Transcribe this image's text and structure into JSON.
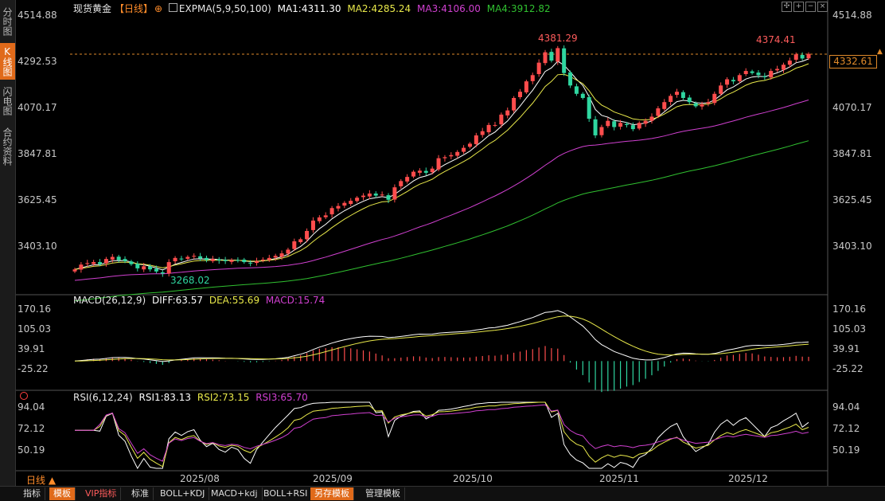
{
  "left_tabs": [
    "分时图",
    "K线图",
    "闪电图",
    "合约资料"
  ],
  "active_tab_index": 1,
  "header": {
    "symbol": "现货黄金",
    "period": "【日线】",
    "indicator": "EXPMA(5,9,50,100)",
    "ma1": "MA1:4311.30",
    "ma2": "MA2:4285.24",
    "ma3": "MA3:4106.00",
    "ma4": "MA4:3912.82",
    "toolbar_icons": [
      "move-icon",
      "zoom-in-icon",
      "zoom-out-icon",
      "close-icon"
    ]
  },
  "price_axis": [
    "4514.88",
    "4292.53",
    "4070.17",
    "3847.81",
    "3625.45",
    "3403.10"
  ],
  "current_price": "4332.61",
  "annotations": {
    "high": "4381.29",
    "recent_high": "4374.41",
    "low": "3268.02"
  },
  "macd": {
    "title": "MACD(26,12,9)",
    "diff": "DIFF:63.57",
    "dea": "DEA:55.69",
    "macd": "MACD:15.74",
    "axis": [
      "170.16",
      "105.03",
      "39.91",
      "-25.22"
    ]
  },
  "rsi": {
    "title": "RSI(6,12,24)",
    "rsi1": "RSI1:83.13",
    "rsi2": "RSI2:73.15",
    "rsi3": "RSI3:65.70",
    "axis": [
      "94.04",
      "72.12",
      "50.19"
    ]
  },
  "period_selector": "日线 ▲",
  "dates": [
    "2025/08",
    "2025/09",
    "2025/10",
    "2025/11",
    "2025/12"
  ],
  "bottom_tabs": [
    "指标",
    "模板",
    "VIP指标",
    "标准",
    "BOLL+KDJ",
    "MACD+kdj",
    "BOLL+RSI",
    "另存模板",
    "管理模板"
  ],
  "colors": {
    "up": "#ff4d4d",
    "down": "#2fd6a0",
    "ma1": "#ffffff",
    "ma2": "#e8e84a",
    "ma3": "#d040d0",
    "ma4": "#30c030",
    "accent": "#e06a1a"
  },
  "chart_data": {
    "type": "candlestick",
    "title": "现货黄金【日线】",
    "close_series": [
      3295,
      3318,
      3325,
      3330,
      3320,
      3345,
      3355,
      3340,
      3335,
      3320,
      3300,
      3310,
      3295,
      3285,
      3275,
      3330,
      3350,
      3345,
      3355,
      3360,
      3348,
      3340,
      3345,
      3338,
      3335,
      3340,
      3338,
      3330,
      3325,
      3335,
      3342,
      3350,
      3360,
      3372,
      3390,
      3430,
      3440,
      3480,
      3530,
      3545,
      3555,
      3590,
      3600,
      3615,
      3625,
      3640,
      3650,
      3660,
      3650,
      3655,
      3630,
      3690,
      3720,
      3740,
      3765,
      3770,
      3760,
      3780,
      3830,
      3835,
      3845,
      3860,
      3880,
      3900,
      3940,
      3960,
      3990,
      3990,
      4040,
      4060,
      4120,
      4150,
      4200,
      4230,
      4290,
      4340,
      4300,
      4360,
      4240,
      4180,
      4140,
      4120,
      4020,
      3940,
      3980,
      4010,
      3980,
      4000,
      3990,
      3970,
      4000,
      4010,
      4030,
      4070,
      4100,
      4130,
      4150,
      4120,
      4100,
      4080,
      4090,
      4100,
      4140,
      4180,
      4210,
      4200,
      4230,
      4250,
      4240,
      4230,
      4220,
      4250,
      4260,
      4280,
      4300,
      4330,
      4310,
      4332
    ],
    "y_range": [
      3268.02,
      4381.29
    ],
    "x_labels": [
      "2025/08",
      "2025/09",
      "2025/10",
      "2025/11",
      "2025/12"
    ]
  }
}
